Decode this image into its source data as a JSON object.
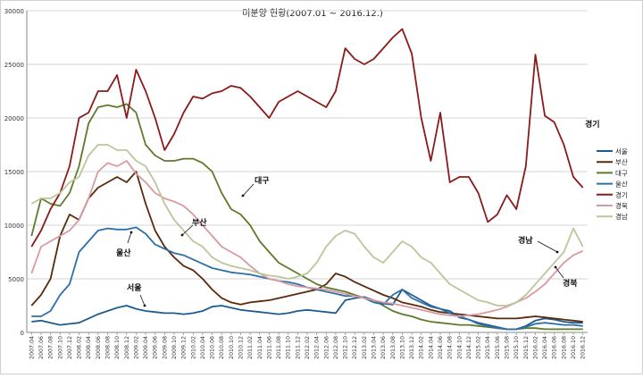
{
  "chart_data": {
    "type": "line",
    "title": "미분양 현황(2007.01 ~ 2016.12.)",
    "xlabel": "",
    "ylabel": "",
    "ylim": [
      0,
      30000
    ],
    "yticks": [
      0,
      5000,
      10000,
      15000,
      20000,
      25000,
      30000
    ],
    "grid": true,
    "legend_position": "right",
    "x": [
      "2007.04",
      "2007.06",
      "2007.08",
      "2007.10",
      "2007.12",
      "2008.02",
      "2008.04",
      "2008.06",
      "2008.08",
      "2008.10",
      "2008.12",
      "2009.02",
      "2009.04",
      "2009.06",
      "2009.08",
      "2009.10",
      "2009.12",
      "2010.02",
      "2010.04",
      "2010.06",
      "2010.08",
      "2010.10",
      "2010.12",
      "2011.02",
      "2011.04",
      "2011.06",
      "2011.08",
      "2011.10",
      "2011.12",
      "2012.02",
      "2012.04",
      "2012.06",
      "2012.08",
      "2012.10",
      "2012.12",
      "2013.02",
      "2013.04",
      "2013.06",
      "2013.08",
      "2013.10",
      "2013.12",
      "2014.02",
      "2014.04",
      "2014.06",
      "2014.08",
      "2014.10",
      "2014.12",
      "2015.02",
      "2015.04",
      "2015.06",
      "2015.08",
      "2015.10",
      "2015.12",
      "2016.02",
      "2016.04",
      "2016.06",
      "2016.08",
      "2016.10",
      "2016.12"
    ],
    "series": [
      {
        "name": "서울",
        "color": "#1f5c8c",
        "values": [
          1000,
          1100,
          900,
          700,
          800,
          900,
          1300,
          1700,
          2000,
          2300,
          2500,
          2200,
          2000,
          1900,
          1800,
          1800,
          1700,
          1800,
          2000,
          2400,
          2500,
          2300,
          2100,
          2000,
          1900,
          1800,
          1700,
          1800,
          2000,
          2100,
          2000,
          1900,
          1800,
          3000,
          3200,
          3300,
          3000,
          2700,
          2600,
          4000,
          3500,
          3000,
          2500,
          2200,
          2000,
          1400,
          1200,
          900,
          700,
          500,
          300,
          300,
          600,
          1100,
          1300,
          1200,
          1000,
          900,
          900
        ]
      },
      {
        "name": "부산",
        "color": "#5a2a0c",
        "values": [
          2500,
          3500,
          5000,
          9000,
          11000,
          10500,
          12500,
          13500,
          14000,
          14500,
          14000,
          15000,
          12000,
          9500,
          8000,
          7000,
          6200,
          5800,
          5000,
          4000,
          3200,
          2800,
          2600,
          2800,
          2900,
          3000,
          3200,
          3400,
          3600,
          3800,
          4000,
          4500,
          5500,
          5200,
          4700,
          4300,
          3900,
          3500,
          3200,
          2800,
          2600,
          2400,
          2100,
          1900,
          1800,
          1700,
          1600,
          1500,
          1400,
          1300,
          1300,
          1300,
          1400,
          1500,
          1400,
          1300,
          1200,
          1100,
          1000
        ]
      },
      {
        "name": "대구",
        "color": "#5e7a2c",
        "values": [
          9000,
          12500,
          12000,
          11800,
          13000,
          15500,
          19500,
          21000,
          21200,
          21000,
          21300,
          20500,
          17500,
          16500,
          16000,
          16000,
          16200,
          16200,
          15800,
          15000,
          13000,
          11500,
          11000,
          10000,
          8500,
          7500,
          6500,
          6000,
          5500,
          5000,
          4500,
          4200,
          4000,
          3800,
          3500,
          3200,
          3000,
          2500,
          2000,
          1700,
          1500,
          1200,
          1000,
          900,
          800,
          700,
          700,
          600,
          500,
          400,
          300,
          300,
          400,
          400,
          300,
          300,
          300,
          300,
          300
        ]
      },
      {
        "name": "울산",
        "color": "#2f6fa8",
        "values": [
          1500,
          1500,
          2000,
          3500,
          4500,
          7500,
          8500,
          9500,
          9700,
          9600,
          9600,
          9800,
          9200,
          8200,
          7800,
          7400,
          7200,
          6800,
          6400,
          6000,
          5800,
          5600,
          5500,
          5400,
          5200,
          5000,
          4800,
          4700,
          4500,
          4200,
          4000,
          3800,
          3600,
          3400,
          3400,
          3200,
          2800,
          2600,
          3500,
          4000,
          3200,
          2800,
          2400,
          2200,
          1800,
          1500,
          1200,
          800,
          600,
          400,
          300,
          300,
          500,
          800,
          900,
          800,
          700,
          700,
          600
        ]
      },
      {
        "name": "경기",
        "color": "#8b1a1a",
        "values": [
          8000,
          9500,
          11500,
          13000,
          15500,
          20000,
          20500,
          22500,
          22500,
          24000,
          20000,
          24500,
          22500,
          20000,
          17000,
          18500,
          20500,
          22000,
          21800,
          22300,
          22500,
          23000,
          22800,
          22000,
          21000,
          20000,
          21500,
          22000,
          22500,
          22000,
          21500,
          21000,
          22500,
          26500,
          25500,
          25000,
          25500,
          26500,
          27500,
          28300,
          26000,
          20000,
          16000,
          20500,
          14000,
          14500,
          14500,
          13000,
          10300,
          11000,
          12800,
          11500,
          15500,
          25900,
          20200,
          19600,
          17500,
          14500,
          13500
        ]
      },
      {
        "name": "경북",
        "color": "#d89aa0",
        "values": [
          5500,
          8000,
          8500,
          9000,
          9500,
          10500,
          12500,
          15000,
          15800,
          15500,
          16000,
          14800,
          14000,
          13000,
          12500,
          12200,
          11800,
          11000,
          10000,
          9000,
          8000,
          7500,
          7000,
          6200,
          5500,
          5000,
          4800,
          4500,
          4300,
          4200,
          4100,
          4000,
          3800,
          3600,
          3400,
          3200,
          3000,
          2800,
          2700,
          2500,
          2300,
          2100,
          1900,
          1700,
          1600,
          1500,
          1600,
          1700,
          1900,
          2100,
          2400,
          2800,
          3200,
          3800,
          4500,
          5500,
          6500,
          7200,
          7600
        ]
      },
      {
        "name": "경남",
        "color": "#bac79a",
        "values": [
          12000,
          12500,
          12500,
          13000,
          14000,
          14500,
          16500,
          17500,
          17500,
          17000,
          17000,
          16000,
          15500,
          14000,
          12000,
          10500,
          9500,
          8500,
          8000,
          7000,
          6500,
          6200,
          6000,
          5800,
          5500,
          5300,
          5200,
          5000,
          5200,
          5500,
          6500,
          8000,
          9000,
          9500,
          9200,
          8000,
          7000,
          6500,
          7500,
          8500,
          8000,
          7000,
          6500,
          5500,
          4500,
          4000,
          3500,
          3000,
          2800,
          2500,
          2500,
          2800,
          3500,
          4500,
          5500,
          6500,
          7500,
          9700,
          8000
        ]
      }
    ],
    "annotations": [
      "대구",
      "부산",
      "울산",
      "서울",
      "경기",
      "경남",
      "경북"
    ]
  }
}
